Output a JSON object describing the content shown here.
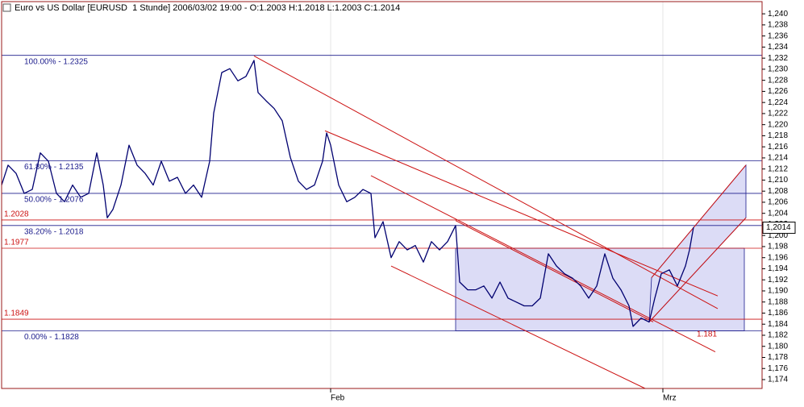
{
  "chart_data": {
    "type": "line",
    "title": "Euro vs US Dollar [EURUSD  1 Stunde] 2006/03/02 19:00 - O:1.2003 H:1.2018 L:1.2003 C:1.2014",
    "color": "#000070",
    "x": [
      0,
      8,
      18,
      28,
      38,
      48,
      58,
      68,
      78,
      88,
      98,
      108,
      118,
      126,
      131,
      138,
      148,
      158,
      168,
      178,
      188,
      198,
      208,
      218,
      228,
      238,
      248,
      258,
      263,
      273,
      283,
      293,
      303,
      313,
      318,
      328,
      338,
      348,
      358,
      368,
      378,
      388,
      398,
      403,
      408,
      418,
      428,
      438,
      448,
      458,
      463,
      473,
      483,
      493,
      503,
      513,
      523,
      533,
      543,
      553,
      563,
      568,
      578,
      588,
      598,
      608,
      618,
      628,
      638,
      648,
      658,
      668,
      678,
      688,
      698,
      708,
      718,
      728,
      738,
      748,
      758,
      768,
      778,
      783,
      793,
      803,
      810,
      818,
      828,
      838,
      848,
      853,
      858
    ],
    "values": [
      1.2091,
      1.2127,
      1.2112,
      1.2076,
      1.2083,
      1.2149,
      1.2134,
      1.2076,
      1.2061,
      1.2091,
      1.2069,
      1.2076,
      1.2149,
      1.2091,
      1.2032,
      1.2047,
      1.2091,
      1.2163,
      1.2127,
      1.2112,
      1.2091,
      1.2134,
      1.2098,
      1.2105,
      1.2076,
      1.2091,
      1.2069,
      1.2134,
      1.2221,
      1.2294,
      1.2301,
      1.2279,
      1.2287,
      1.2316,
      1.2258,
      1.2243,
      1.2229,
      1.2207,
      1.2141,
      1.2098,
      1.2083,
      1.2091,
      1.2134,
      1.2185,
      1.2163,
      1.2091,
      1.2061,
      1.2069,
      1.2083,
      1.2076,
      1.1996,
      1.2025,
      1.196,
      1.1989,
      1.1974,
      1.1982,
      1.1952,
      1.1989,
      1.1974,
      1.1989,
      1.2018,
      1.1916,
      1.1902,
      1.1902,
      1.1909,
      1.1887,
      1.1916,
      1.1887,
      1.188,
      1.1873,
      1.1873,
      1.1887,
      1.1967,
      1.1945,
      1.1931,
      1.1923,
      1.1909,
      1.1887,
      1.1909,
      1.1967,
      1.1923,
      1.1902,
      1.1873,
      1.1836,
      1.1851,
      1.1844,
      1.1887,
      1.1931,
      1.1938,
      1.1909,
      1.1945,
      1.1974,
      1.2015
    ],
    "xlim": [
      0,
      943
    ],
    "xticks": [
      {
        "value": 408,
        "label": "Feb"
      },
      {
        "value": 820,
        "label": "Mrz"
      }
    ],
    "ylim": [
      1.1724,
      1.2422
    ],
    "yticks": [
      {
        "value": 1.174,
        "label": "1,174"
      },
      {
        "value": 1.176,
        "label": "1,176"
      },
      {
        "value": 1.178,
        "label": "1,178"
      },
      {
        "value": 1.18,
        "label": "1,180"
      },
      {
        "value": 1.182,
        "label": "1,182"
      },
      {
        "value": 1.184,
        "label": "1,184"
      },
      {
        "value": 1.186,
        "label": "1,186"
      },
      {
        "value": 1.188,
        "label": "1,188"
      },
      {
        "value": 1.19,
        "label": "1,190"
      },
      {
        "value": 1.192,
        "label": "1,192"
      },
      {
        "value": 1.194,
        "label": "1,194"
      },
      {
        "value": 1.196,
        "label": "1,196"
      },
      {
        "value": 1.198,
        "label": "1,198"
      },
      {
        "value": 1.2,
        "label": "1,200"
      },
      {
        "value": 1.202,
        "label": "1,202"
      },
      {
        "value": 1.204,
        "label": "1,204"
      },
      {
        "value": 1.206,
        "label": "1,206"
      },
      {
        "value": 1.208,
        "label": "1,208"
      },
      {
        "value": 1.21,
        "label": "1,210"
      },
      {
        "value": 1.212,
        "label": "1,212"
      },
      {
        "value": 1.214,
        "label": "1,214"
      },
      {
        "value": 1.216,
        "label": "1,216"
      },
      {
        "value": 1.218,
        "label": "1,218"
      },
      {
        "value": 1.22,
        "label": "1,220"
      },
      {
        "value": 1.222,
        "label": "1,222"
      },
      {
        "value": 1.224,
        "label": "1,224"
      },
      {
        "value": 1.226,
        "label": "1,226"
      },
      {
        "value": 1.228,
        "label": "1,228"
      },
      {
        "value": 1.23,
        "label": "1,230"
      },
      {
        "value": 1.232,
        "label": "1,232"
      },
      {
        "value": 1.234,
        "label": "1,234"
      },
      {
        "value": 1.236,
        "label": "1,236"
      },
      {
        "value": 1.238,
        "label": "1,238"
      },
      {
        "value": 1.24,
        "label": "1,240"
      }
    ],
    "last_price": {
      "value": 1.2014,
      "label": "1,2014"
    },
    "fib_levels": [
      {
        "value": 1.2325,
        "label": "100.00% - 1.2325"
      },
      {
        "value": 1.2135,
        "label": "61.80% - 1.2135"
      },
      {
        "value": 1.2076,
        "label": "50.00% - 1.2076"
      },
      {
        "value": 1.2018,
        "label": "38.20% - 1.2018"
      },
      {
        "value": 1.1828,
        "label": "0.00% - 1.1828"
      }
    ],
    "fib_color": "#1c1c8c",
    "levels": [
      {
        "value": 1.2028,
        "label": "1.2028"
      },
      {
        "value": 1.1977,
        "label": "1.1977"
      },
      {
        "value": 1.1849,
        "label": "1.1849"
      }
    ],
    "level_color": "#cc1111",
    "trend_color": "#cc1111",
    "trendlines": [
      {
        "x": [
          313,
          888
        ],
        "y": [
          1.2324,
          1.1868
        ]
      },
      {
        "x": [
          401,
          888
        ],
        "y": [
          1.2189,
          1.1891
        ]
      },
      {
        "x": [
          458,
          885
        ],
        "y": [
          1.2108,
          1.179
        ]
      },
      {
        "x": [
          483,
          798
        ],
        "y": [
          1.1945,
          1.1724
        ]
      },
      {
        "x": [
          563,
          808
        ],
        "y": [
          1.2027,
          1.1844
        ]
      },
      {
        "x": [
          806,
          923
        ],
        "y": [
          1.1924,
          1.2127
        ]
      },
      {
        "x": [
          803,
          923
        ],
        "y": [
          1.1844,
          1.2032
        ]
      }
    ],
    "trend_label": {
      "x": 858,
      "value": 1.181,
      "label": "1.181"
    },
    "fills": [
      {
        "x": [
          563,
          921,
          921,
          563
        ],
        "y": [
          1.1977,
          1.1977,
          1.1828,
          1.1828
        ]
      },
      {
        "x": [
          806,
          923,
          923,
          803
        ],
        "y": [
          1.1924,
          1.2127,
          1.2032,
          1.1844
        ]
      }
    ],
    "fill_color": "#dcdcf6"
  }
}
